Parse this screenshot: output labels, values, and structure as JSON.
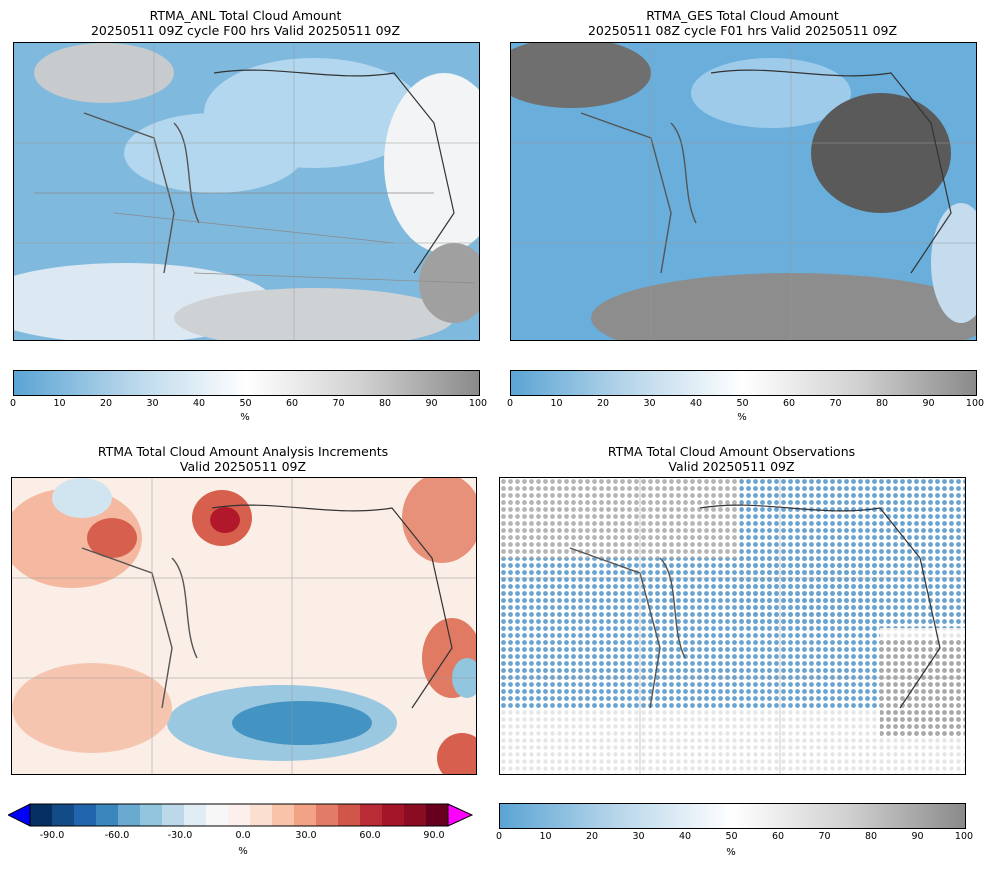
{
  "panels": [
    {
      "title_line1": "RTMA_ANL Total Cloud Amount",
      "title_line2": "20250511 09Z cycle F00 hrs Valid 20250511 09Z",
      "colorbar_ticks": [
        "0",
        "10",
        "20",
        "30",
        "40",
        "50",
        "60",
        "70",
        "80",
        "90",
        "100"
      ],
      "colorbar_unit": "%"
    },
    {
      "title_line1": "RTMA_GES Total Cloud Amount",
      "title_line2": "20250511 08Z cycle F01 hrs Valid 20250511 09Z",
      "colorbar_ticks": [
        "0",
        "10",
        "20",
        "30",
        "40",
        "50",
        "60",
        "70",
        "80",
        "90",
        "100"
      ],
      "colorbar_unit": "%"
    },
    {
      "title_line1": "RTMA Total Cloud Amount Analysis Increments",
      "title_line2": "Valid 20250511 09Z",
      "colorbar_ticks": [
        "-90.0",
        "-60.0",
        "-30.0",
        "0.0",
        "30.0",
        "60.0",
        "90.0"
      ],
      "colorbar_unit": "%"
    },
    {
      "title_line1": "RTMA Total Cloud Amount Observations",
      "title_line2": "Valid 20250511 09Z",
      "colorbar_ticks": [
        "0",
        "10",
        "20",
        "30",
        "40",
        "50",
        "60",
        "70",
        "80",
        "90",
        "100"
      ],
      "colorbar_unit": "%"
    }
  ],
  "colors": {
    "cloud_low": "#5ba4d4",
    "cloud_mid": "#ffffff",
    "cloud_high": "#8a8a8a",
    "increment_negative": "#2166ac",
    "increment_positive": "#b2182b",
    "increment_under": "#0000ff",
    "increment_over": "#ff00ff",
    "boundaries": "#333333",
    "counties": "#8a8a8a"
  }
}
